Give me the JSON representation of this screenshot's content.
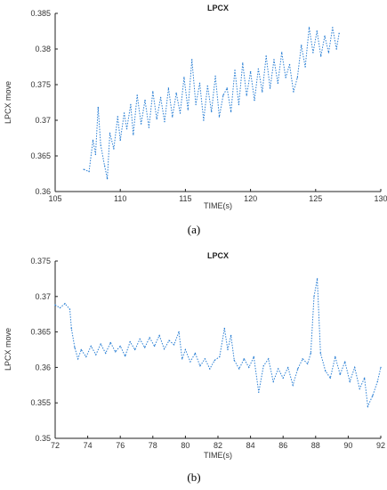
{
  "panels": [
    {
      "label": "(a)",
      "chart_data": {
        "type": "line",
        "title": "LPCX",
        "xlabel": "TIME(s)",
        "ylabel": "LPCX move",
        "xlim": [
          105,
          130
        ],
        "ylim": [
          0.36,
          0.385
        ],
        "xticks": [
          105,
          110,
          115,
          120,
          125,
          130
        ],
        "yticks": [
          0.36,
          0.365,
          0.37,
          0.375,
          0.38,
          0.385
        ],
        "xtick_labels": [
          "105",
          "110",
          "115",
          "120",
          "125",
          "130"
        ],
        "ytick_labels": [
          "0.36",
          "0.365",
          "0.37",
          "0.375",
          "0.38",
          "0.385"
        ],
        "grid": false,
        "color": "#2a7fd4",
        "series": [
          {
            "x": [
              107.2,
              107.6,
              107.9,
              108.1,
              108.3,
              108.5,
              108.8,
              109.0,
              109.2,
              109.5,
              109.8,
              110.0,
              110.3,
              110.5,
              110.8,
              111.0,
              111.3,
              111.6,
              111.9,
              112.2,
              112.5,
              112.8,
              113.1,
              113.4,
              113.7,
              114.0,
              114.3,
              114.6,
              114.9,
              115.2,
              115.5,
              115.8,
              116.1,
              116.4,
              116.7,
              117.0,
              117.3,
              117.6,
              117.9,
              118.2,
              118.5,
              118.8,
              119.1,
              119.4,
              119.7,
              120.0,
              120.3,
              120.6,
              120.9,
              121.2,
              121.5,
              121.8,
              122.1,
              122.4,
              122.7,
              123.0,
              123.3,
              123.6,
              123.9,
              124.2,
              124.5,
              124.8,
              125.1,
              125.4,
              125.7,
              126.0,
              126.3,
              126.6,
              126.8
            ],
            "y": [
              0.3631,
              0.3628,
              0.3672,
              0.3652,
              0.3718,
              0.3665,
              0.3636,
              0.3618,
              0.3682,
              0.366,
              0.3705,
              0.3672,
              0.371,
              0.3688,
              0.3722,
              0.368,
              0.3735,
              0.3695,
              0.3728,
              0.369,
              0.374,
              0.3702,
              0.3732,
              0.3698,
              0.3745,
              0.3705,
              0.3738,
              0.371,
              0.376,
              0.3715,
              0.3785,
              0.3722,
              0.3752,
              0.37,
              0.3748,
              0.3712,
              0.3762,
              0.3705,
              0.3735,
              0.3745,
              0.3712,
              0.377,
              0.3722,
              0.378,
              0.3735,
              0.3768,
              0.3728,
              0.3772,
              0.374,
              0.379,
              0.3745,
              0.3785,
              0.3752,
              0.3795,
              0.376,
              0.3778,
              0.374,
              0.376,
              0.3805,
              0.3775,
              0.383,
              0.3795,
              0.3825,
              0.379,
              0.3818,
              0.3795,
              0.383,
              0.38,
              0.3822
            ]
          }
        ]
      }
    },
    {
      "label": "(b)",
      "chart_data": {
        "type": "line",
        "title": "LPCX",
        "xlabel": "TIME(s)",
        "ylabel": "LPCX move",
        "xlim": [
          72,
          92
        ],
        "ylim": [
          0.35,
          0.375
        ],
        "xticks": [
          72,
          74,
          76,
          78,
          80,
          82,
          84,
          86,
          88,
          90,
          92
        ],
        "yticks": [
          0.35,
          0.355,
          0.36,
          0.365,
          0.37,
          0.375
        ],
        "xtick_labels": [
          "72",
          "74",
          "76",
          "78",
          "80",
          "82",
          "84",
          "86",
          "88",
          "90",
          "92"
        ],
        "ytick_labels": [
          "0.35",
          "0.355",
          "0.36",
          "0.365",
          "0.37",
          "0.375"
        ],
        "grid": false,
        "color": "#2a7fd4",
        "series": [
          {
            "x": [
              72.0,
              72.3,
              72.6,
              72.9,
              73.0,
              73.2,
              73.4,
              73.6,
              73.9,
              74.2,
              74.5,
              74.8,
              75.1,
              75.4,
              75.7,
              76.0,
              76.3,
              76.6,
              76.9,
              77.2,
              77.5,
              77.8,
              78.1,
              78.4,
              78.7,
              79.0,
              79.3,
              79.6,
              79.8,
              80.0,
              80.3,
              80.6,
              80.9,
              81.2,
              81.5,
              81.8,
              82.1,
              82.4,
              82.6,
              82.8,
              83.0,
              83.3,
              83.6,
              83.9,
              84.2,
              84.5,
              84.8,
              85.1,
              85.4,
              85.7,
              86.0,
              86.3,
              86.6,
              86.9,
              87.2,
              87.5,
              87.7,
              87.9,
              88.1,
              88.3,
              88.6,
              88.9,
              89.2,
              89.5,
              89.8,
              90.1,
              90.4,
              90.7,
              91.0,
              91.2,
              91.5,
              91.8,
              92.0
            ],
            "y": [
              0.3688,
              0.3684,
              0.369,
              0.3682,
              0.3655,
              0.3628,
              0.3612,
              0.3625,
              0.3615,
              0.363,
              0.3618,
              0.3633,
              0.362,
              0.3635,
              0.3622,
              0.363,
              0.3616,
              0.3636,
              0.3625,
              0.364,
              0.3628,
              0.3642,
              0.363,
              0.3645,
              0.3626,
              0.3638,
              0.3632,
              0.365,
              0.3612,
              0.3625,
              0.3608,
              0.362,
              0.3602,
              0.3612,
              0.3598,
              0.361,
              0.3615,
              0.3655,
              0.3625,
              0.3645,
              0.361,
              0.3598,
              0.3612,
              0.36,
              0.3615,
              0.3565,
              0.3602,
              0.3612,
              0.358,
              0.3598,
              0.3585,
              0.36,
              0.3575,
              0.3598,
              0.3612,
              0.3605,
              0.362,
              0.37,
              0.3725,
              0.362,
              0.3595,
              0.3585,
              0.3615,
              0.359,
              0.3608,
              0.358,
              0.36,
              0.357,
              0.3585,
              0.3545,
              0.356,
              0.358,
              0.36
            ]
          }
        ]
      }
    }
  ]
}
